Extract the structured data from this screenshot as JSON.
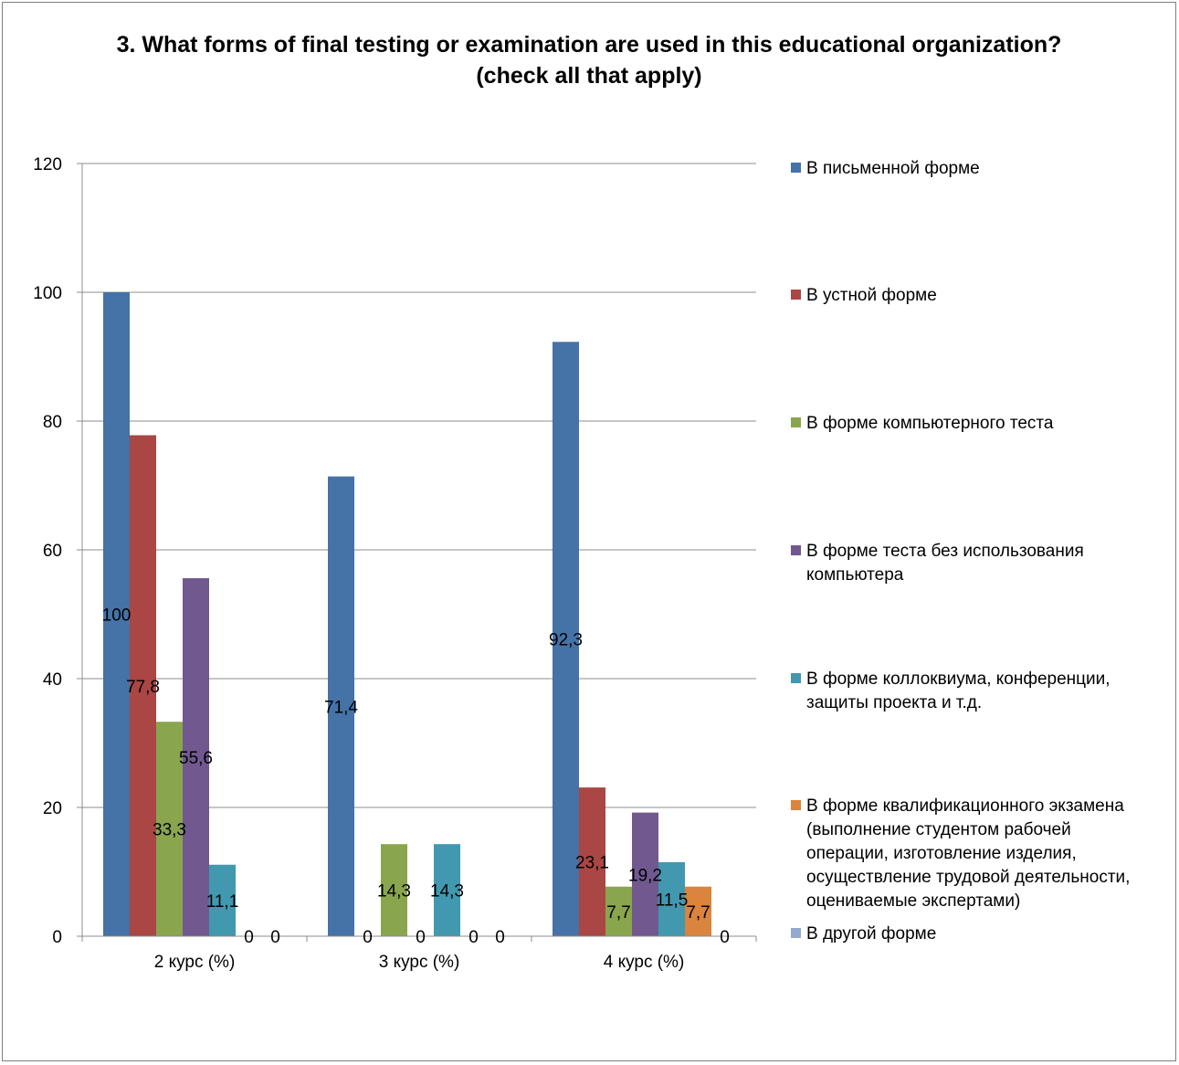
{
  "chart_data": {
    "type": "bar",
    "title": "3. What forms of final testing or examination are used in this educational organization? (check all that apply)",
    "xlabel": "",
    "ylabel": "",
    "ylim": [
      0,
      120
    ],
    "yticks": [
      0,
      20,
      40,
      60,
      80,
      100,
      120
    ],
    "grid": true,
    "legend_position": "right",
    "categories": [
      "2 курс (%)",
      "3 курс (%)",
      "4 курс (%)"
    ],
    "series": [
      {
        "name": "В письменной форме",
        "color": "#4572a7",
        "values": [
          100,
          71.4,
          92.3
        ],
        "labels": [
          "100",
          "71,4",
          "92,3"
        ]
      },
      {
        "name": "В устной форме",
        "color": "#aa4643",
        "values": [
          77.8,
          0,
          23.1
        ],
        "labels": [
          "77,8",
          "0",
          "23,1"
        ]
      },
      {
        "name": "В форме компьютерного теста",
        "color": "#89a54e",
        "values": [
          33.3,
          14.3,
          7.7
        ],
        "labels": [
          "33,3",
          "14,3",
          "7,7"
        ]
      },
      {
        "name": "В форме теста без использования компьютера",
        "color": "#71588f",
        "values": [
          55.6,
          0,
          19.2
        ],
        "labels": [
          "55,6",
          "0",
          "19,2"
        ]
      },
      {
        "name": "В форме коллоквиума, конференции, защиты проекта и т.д.",
        "color": "#4198af",
        "values": [
          11.1,
          14.3,
          11.5
        ],
        "labels": [
          "11,1",
          "14,3",
          "11,5"
        ]
      },
      {
        "name": "В форме квалификационного экзамена (выполнение студентом рабочей операции, изготовление изделия, осуществление трудовой деятельности, оцениваемые экспертами)",
        "color": "#db843d",
        "values": [
          0,
          0,
          7.7
        ],
        "labels": [
          "0",
          "0",
          "7,7"
        ]
      },
      {
        "name": "В другой форме",
        "color": "#93a9cf",
        "values": [
          0,
          0,
          0
        ],
        "labels": [
          "0",
          "0",
          "0"
        ]
      }
    ]
  },
  "legend": {
    "items": [
      "В письменной форме",
      "В устной форме",
      "В форме компьютерного теста",
      "В форме теста без использования\nкомпьютера",
      "В форме коллоквиума, конференции,\nзащиты проекта и т.д.",
      "В форме квалификационного экзамена\n(выполнение студентом рабочей\nоперации, изготовление изделия,\nосуществление трудовой деятельности,\nоцениваемые экспертами)",
      "В другой форме"
    ]
  }
}
